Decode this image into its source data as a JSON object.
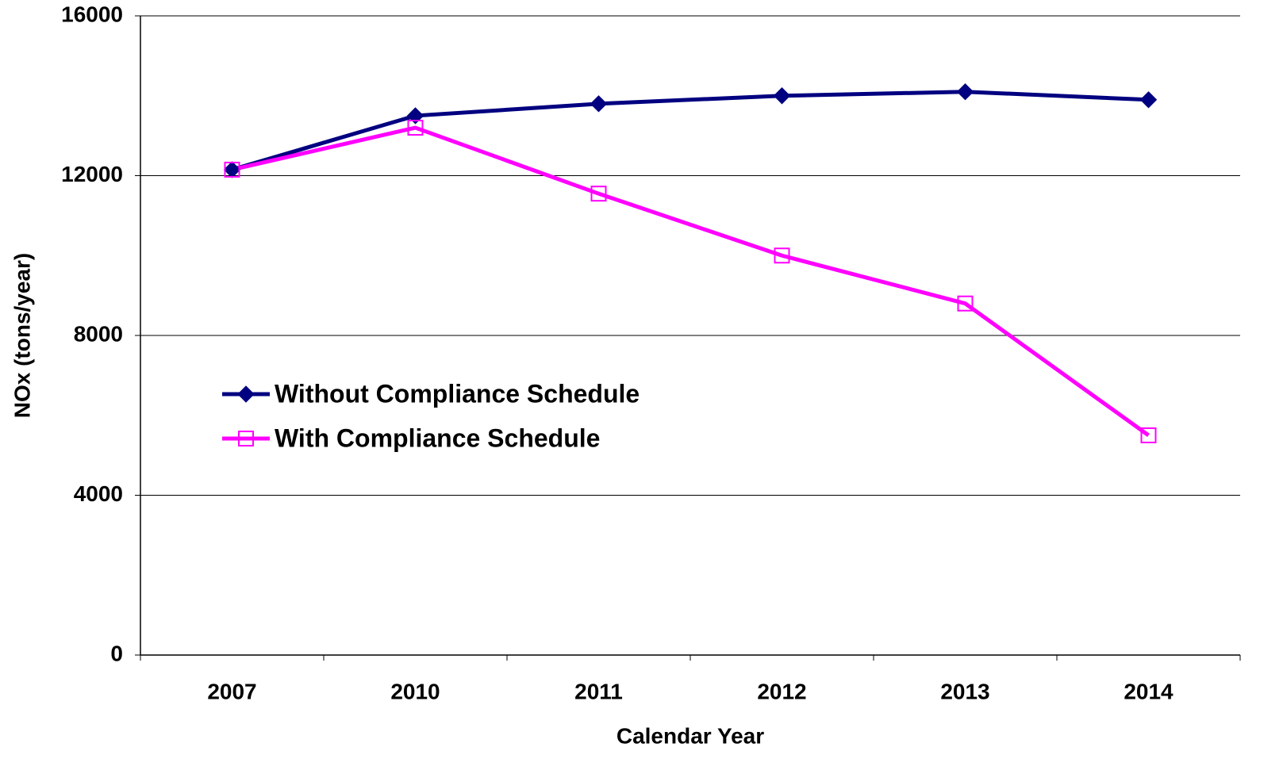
{
  "chart_data": {
    "type": "line",
    "x_label": "Calendar Year",
    "y_label": "NOx (tons/year)",
    "categories": [
      "2007",
      "2010",
      "2011",
      "2012",
      "2013",
      "2014"
    ],
    "series": [
      {
        "name": "Without Compliance Schedule",
        "color": "#000080",
        "marker": "diamond",
        "values": [
          12150,
          13500,
          13800,
          14000,
          14100,
          13900
        ]
      },
      {
        "name": "With Compliance Schedule",
        "color": "#ff00ff",
        "marker": "square-open",
        "values": [
          12150,
          13200,
          11550,
          10000,
          8800,
          5500
        ]
      }
    ],
    "ylim": [
      0,
      16000
    ],
    "yticks": [
      0,
      4000,
      8000,
      12000,
      16000
    ],
    "grid": true,
    "legend": "left"
  }
}
